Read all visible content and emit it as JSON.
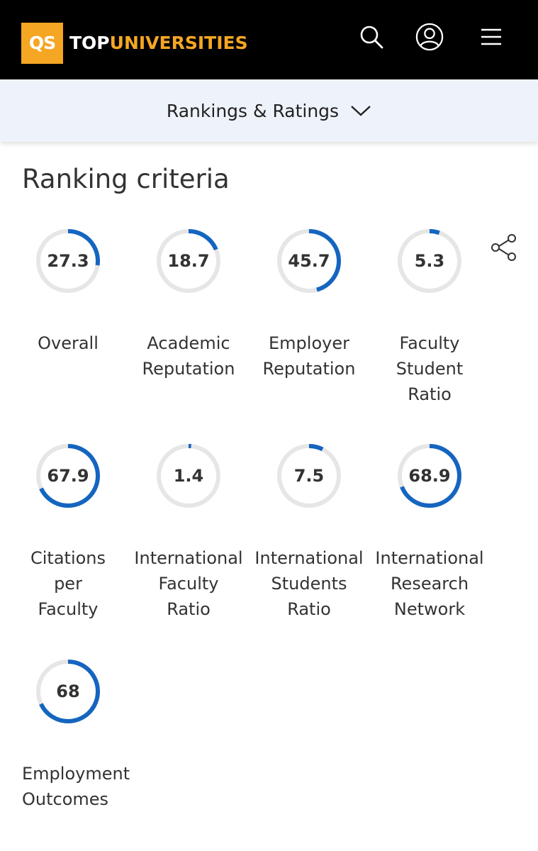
{
  "header": {
    "logo_text": "QS",
    "brand_part1": "TOP",
    "brand_part2": "UNIVERSITIES",
    "icons": [
      "search-icon",
      "user-account-icon",
      "hamburger-menu-icon"
    ],
    "colors": {
      "background": "#000000",
      "brand_accent": "#f5a623"
    }
  },
  "subnav": {
    "label": "Rankings & Ratings",
    "icon": "chevron-down-icon"
  },
  "section": {
    "title": "Ranking criteria",
    "share_icon": "share-icon"
  },
  "ring_colors": {
    "track": "#e6e6e6",
    "progress": "#1565c0"
  },
  "criteria": [
    {
      "value": "27.3",
      "score": 27.3,
      "label_lines": [
        "Overall"
      ]
    },
    {
      "value": "18.7",
      "score": 18.7,
      "label_lines": [
        "Academic",
        "Reputation"
      ]
    },
    {
      "value": "45.7",
      "score": 45.7,
      "label_lines": [
        "Employer",
        "Reputation"
      ]
    },
    {
      "value": "5.3",
      "score": 5.3,
      "label_lines": [
        "Faculty",
        "Student",
        "Ratio"
      ]
    },
    {
      "value": "67.9",
      "score": 67.9,
      "label_lines": [
        "Citations",
        "per",
        "Faculty"
      ]
    },
    {
      "value": "1.4",
      "score": 1.4,
      "label_lines": [
        "International",
        "Faculty",
        "Ratio"
      ]
    },
    {
      "value": "7.5",
      "score": 7.5,
      "label_lines": [
        "International",
        "Students",
        "Ratio"
      ]
    },
    {
      "value": "68.9",
      "score": 68.9,
      "label_lines": [
        "International",
        "Research",
        "Network"
      ]
    },
    {
      "value": "68",
      "score": 68,
      "label_lines": [
        "Employment",
        "Outcomes"
      ]
    }
  ]
}
